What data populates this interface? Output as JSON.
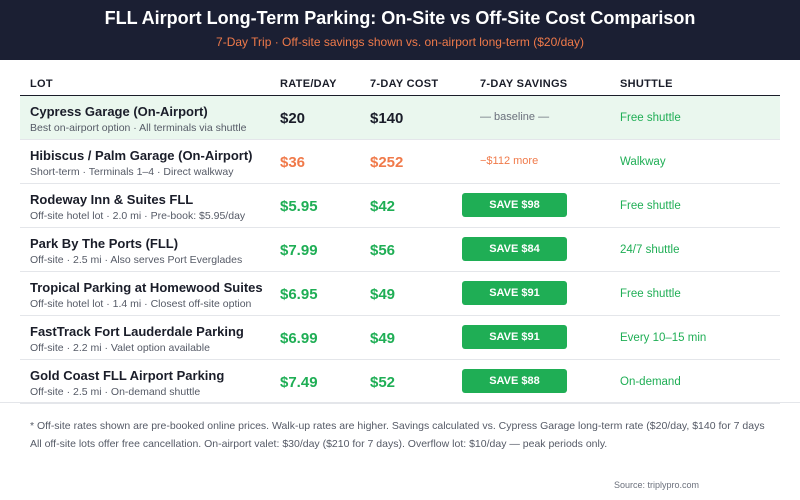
{
  "header": {
    "title": "FLL Airport Long-Term Parking: On-Site vs Off-Site Cost Comparison",
    "subtitle": "7-Day Trip · Off-site savings shown vs. on-airport long-term ($20/day)"
  },
  "columns": {
    "lot": "LOT",
    "rate": "RATE/DAY",
    "cost": "7-DAY COST",
    "savings": "7-DAY SAVINGS",
    "shuttle": "SHUTTLE"
  },
  "rows": [
    {
      "name": "Cypress Garage (On-Airport)",
      "desc": "Best on-airport option · All terminals via shuttle",
      "rate": "$20",
      "cost": "$140",
      "savings": "— baseline —",
      "shuttle": "Free shuttle"
    },
    {
      "name": "Hibiscus / Palm Garage (On-Airport)",
      "desc": "Short-term · Terminals 1–4 · Direct walkway",
      "rate": "$36",
      "cost": "$252",
      "savings": "−$112 more",
      "shuttle": "Walkway"
    },
    {
      "name": "Rodeway Inn & Suites FLL",
      "desc": "Off-site hotel lot · 2.0 mi · Pre-book: $5.95/day",
      "rate": "$5.95",
      "cost": "$42",
      "savings": "SAVE $98",
      "shuttle": "Free shuttle"
    },
    {
      "name": "Park By The Ports (FLL)",
      "desc": "Off-site · 2.5 mi · Also serves Port Everglades",
      "rate": "$7.99",
      "cost": "$56",
      "savings": "SAVE $84",
      "shuttle": "24/7 shuttle"
    },
    {
      "name": "Tropical Parking at Homewood Suites",
      "desc": "Off-site hotel lot · 1.4 mi · Closest off-site option",
      "rate": "$6.95",
      "cost": "$49",
      "savings": "SAVE $91",
      "shuttle": "Free shuttle"
    },
    {
      "name": "FastTrack Fort Lauderdale Parking",
      "desc": "Off-site · 2.2 mi · Valet option available",
      "rate": "$6.99",
      "cost": "$49",
      "savings": "SAVE $91",
      "shuttle": "Every 10–15 min"
    },
    {
      "name": "Gold Coast FLL Airport Parking",
      "desc": "Off-site · 2.5 mi · On-demand shuttle",
      "rate": "$7.49",
      "cost": "$52",
      "savings": "SAVE $88",
      "shuttle": "On-demand"
    }
  ],
  "notes": {
    "line1": "* Off-site rates shown are pre-booked online prices. Walk-up rates are higher. Savings calculated vs. Cypress Garage long-term rate ($20/day, $140 for 7 days",
    "line2": "All off-site lots offer free cancellation. On-airport valet: $30/day ($210 for 7 days). Overflow lot: $10/day — peak periods only."
  },
  "source": "Source: triplypro.com",
  "colors": {
    "header_bg": "#1b1f33",
    "accent_orange": "#f07a4a",
    "accent_green": "#1fae55",
    "baseline_bg": "#eaf7ee"
  }
}
